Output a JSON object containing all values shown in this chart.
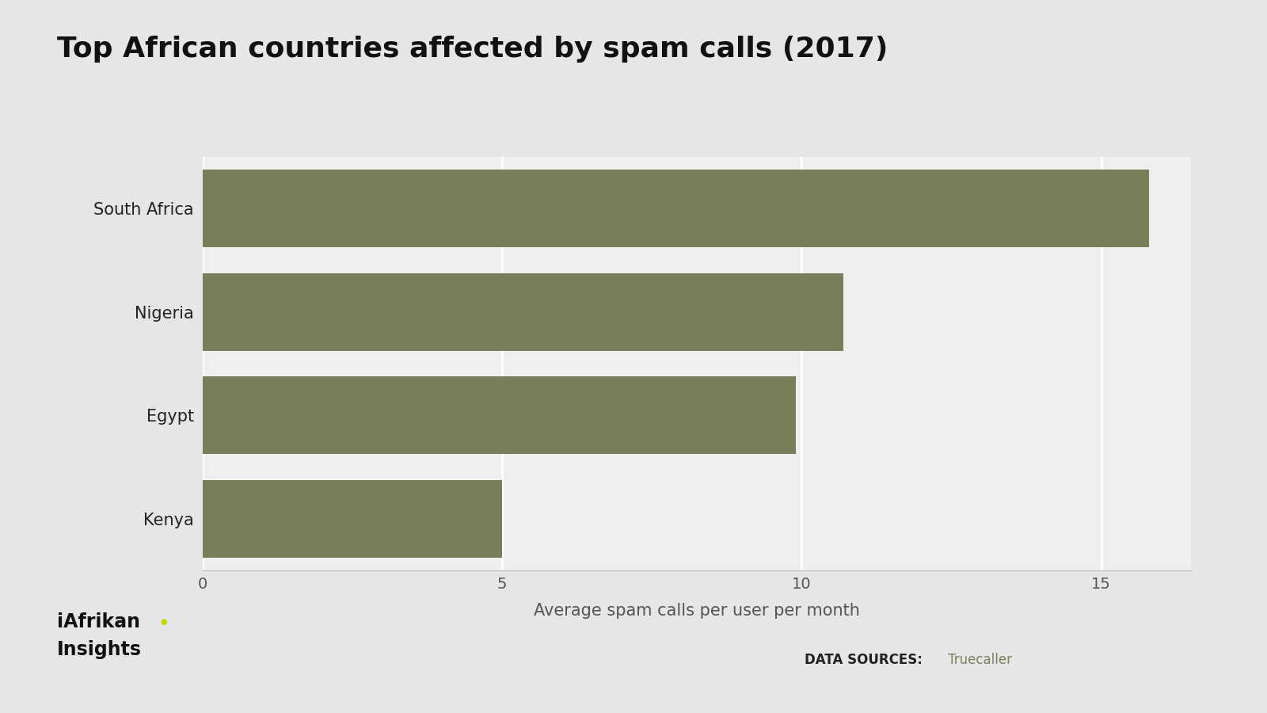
{
  "title": "Top African countries affected by spam calls (2017)",
  "categories": [
    "Kenya",
    "Egypt",
    "Nigeria",
    "South Africa"
  ],
  "values": [
    5,
    9.9,
    10.7,
    15.8
  ],
  "bar_color": "#7a7f5a",
  "background_color": "#e6e6e6",
  "plot_bg_color": "#efefef",
  "xlabel": "Average spam calls per user per month",
  "xlim": [
    0,
    16.5
  ],
  "xticks": [
    0,
    5,
    10,
    15
  ],
  "title_fontsize": 26,
  "label_fontsize": 15,
  "tick_fontsize": 14,
  "data_source_label": "DATA SOURCES:",
  "data_source_value": "Truecaller",
  "data_source_color": "#7a7f5a",
  "logo_text1": "iAfrikan",
  "logo_text2": "Insights",
  "logo_dot_color": "#c8d400"
}
